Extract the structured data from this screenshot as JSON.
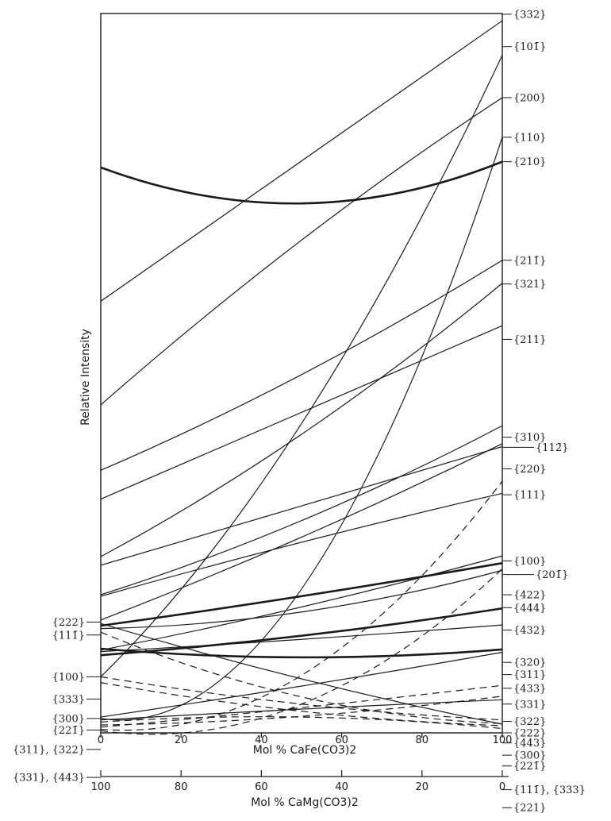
{
  "chart_data": {
    "type": "line",
    "ylabel": "Relative Intensity",
    "xlabel": "Mol % CaFe(CO3)2",
    "xlabel2": "Mol % CaMg(CO3)2",
    "xticks": [
      "0",
      "20",
      "40",
      "60",
      "80",
      "100"
    ],
    "xticks2": [
      "100",
      "80",
      "60",
      "40",
      "20",
      "0"
    ],
    "xlim": [
      0,
      100
    ],
    "ylim": [
      0,
      100
    ],
    "grid": false,
    "series": [
      {
        "name": "{332}",
        "style": "solid",
        "weight": "normal",
        "x": [
          0,
          50,
          100
        ],
        "y": [
          60.0,
          79.5,
          99.0
        ]
      },
      {
        "name": "{101̄}",
        "style": "solid",
        "weight": "normal",
        "x": [
          0,
          50,
          100
        ],
        "y": [
          7.8,
          43.0,
          94.2
        ]
      },
      {
        "name": "{200}",
        "style": "solid",
        "weight": "normal",
        "x": [
          0,
          50,
          100
        ],
        "y": [
          45.6,
          68.5,
          88.3
        ]
      },
      {
        "name": "{110}",
        "style": "solid",
        "weight": "normal",
        "x": [
          0,
          50,
          100
        ],
        "y": [
          2.0,
          20.0,
          82.8
        ]
      },
      {
        "name": "{210}",
        "style": "solid",
        "weight": "bold",
        "x": [
          0,
          50,
          100
        ],
        "y": [
          78.6,
          73.6,
          79.4
        ]
      },
      {
        "name": "{211̄}",
        "style": "solid",
        "weight": "normal",
        "x": [
          0,
          50,
          100
        ],
        "y": [
          36.5,
          49.8,
          65.7
        ]
      },
      {
        "name": "{321}",
        "style": "solid",
        "weight": "normal",
        "x": [
          0,
          50,
          100
        ],
        "y": [
          24.5,
          41.5,
          62.5
        ]
      },
      {
        "name": "{211}",
        "style": "solid",
        "weight": "normal",
        "x": [
          0,
          50,
          100
        ],
        "y": [
          32.5,
          44.6,
          56.6
        ]
      },
      {
        "name": "{310}",
        "style": "solid",
        "weight": "normal",
        "x": [
          0,
          50,
          100
        ],
        "y": [
          19.2,
          29.5,
          42.7
        ]
      },
      {
        "name": "{112̄}",
        "style": "solid",
        "weight": "normal",
        "x": [
          0,
          50,
          100
        ],
        "y": [
          15.7,
          27.2,
          40.2
        ]
      },
      {
        "name": "{220}",
        "style": "solid",
        "weight": "normal",
        "x": [
          0,
          50,
          100
        ],
        "y": [
          23.3,
          31.5,
          39.8
        ]
      },
      {
        "name": "{111}",
        "style": "dashed",
        "weight": "normal",
        "x": [
          0,
          50,
          100
        ],
        "y": [
          0.5,
          8.0,
          35.0
        ]
      },
      {
        "name": "{100}",
        "style": "solid",
        "weight": "normal",
        "x": [
          0,
          50,
          100
        ],
        "y": [
          19.0,
          26.5,
          33.3
        ]
      },
      {
        "name": "{201̄}",
        "style": "solid",
        "weight": "normal",
        "x": [
          0,
          50,
          100
        ],
        "y": [
          11.5,
          17.5,
          24.6
        ]
      },
      {
        "name": "{422}",
        "style": "solid",
        "weight": "bold",
        "x": [
          0,
          50,
          100
        ],
        "y": [
          14.9,
          19.0,
          23.6
        ]
      },
      {
        "name": "{444}",
        "style": "dashed",
        "weight": "normal",
        "x": [
          0,
          50,
          100
        ],
        "y": [
          0.3,
          4.0,
          22.8
        ]
      },
      {
        "name": "{432}",
        "style": "solid",
        "weight": "normal",
        "x": [
          0,
          50,
          100
        ],
        "y": [
          14.5,
          16.8,
          22.6
        ]
      },
      {
        "name": "{320}",
        "style": "solid",
        "weight": "bold",
        "x": [
          0,
          50,
          100
        ],
        "y": [
          10.8,
          13.5,
          17.3
        ]
      },
      {
        "name": "{311}",
        "style": "solid",
        "weight": "normal",
        "x": [
          0,
          50,
          100
        ],
        "y": [
          11.3,
          13.0,
          15.0
        ]
      },
      {
        "name": "{433}",
        "style": "solid",
        "weight": "bold",
        "x": [
          0,
          50,
          100
        ],
        "y": [
          11.7,
          10.5,
          11.6
        ]
      },
      {
        "name": "{331}",
        "style": "solid",
        "weight": "normal",
        "x": [
          0,
          50,
          100
        ],
        "y": [
          2.2,
          6.5,
          11.2
        ]
      },
      {
        "name": "{322}",
        "style": "dashed",
        "weight": "normal",
        "x": [
          0,
          50,
          100
        ],
        "y": [
          0.8,
          3.5,
          6.6
        ]
      },
      {
        "name": "{222}",
        "style": "solid",
        "weight": "normal",
        "x": [
          0,
          50,
          100
        ],
        "y": [
          15.2,
          7.5,
          1.2
        ]
      },
      {
        "name": "{443}",
        "style": "dashed",
        "weight": "normal",
        "x": [
          0,
          50,
          100
        ],
        "y": [
          1.1,
          2.3,
          5.1
        ]
      },
      {
        "name": "{300} {221̄}",
        "style": "solid",
        "weight": "normal",
        "x": [
          0,
          50,
          100
        ],
        "y": [
          1.8,
          3.3,
          4.6
        ]
      },
      {
        "name": "{111̄}",
        "style": "dashed",
        "weight": "normal",
        "x": [
          0,
          50,
          100
        ],
        "y": [
          14.0,
          5.0,
          1.3
        ]
      },
      {
        "name": "{333}",
        "style": "dashed",
        "weight": "normal",
        "x": [
          0,
          50,
          100
        ],
        "y": [
          7.0,
          3.0,
          1.0
        ]
      },
      {
        "name": "{221}",
        "style": "dashed",
        "weight": "normal",
        "x": [
          0,
          50,
          100
        ],
        "y": [
          1.5,
          2.2,
          0.6
        ]
      },
      {
        "name": "{100}",
        "style": "dashed",
        "weight": "normal",
        "x": [
          0,
          50,
          100
        ],
        "y": [
          7.8,
          4.0,
          1.8
        ]
      }
    ],
    "left_labels": [
      {
        "text": "{222}",
        "y": 15.4
      },
      {
        "text": "{111̄}",
        "y": 13.6
      },
      {
        "text": "{100}",
        "y": 7.8
      },
      {
        "text": "{333}",
        "y": 4.7
      },
      {
        "text": "{300}",
        "y": 2.0
      },
      {
        "text": "{221̄}",
        "y": 0.4
      },
      {
        "text": "{311}, {322}",
        "y": -2.3
      },
      {
        "text": "{331}, {443}",
        "y": -6.2
      }
    ],
    "right_labels": [
      {
        "text": "{332}",
        "y": 99.9
      },
      {
        "text": "{101̄}",
        "y": 95.4
      },
      {
        "text": "{200}",
        "y": 88.3
      },
      {
        "text": "{110}",
        "y": 82.8
      },
      {
        "text": "{210}",
        "y": 79.4
      },
      {
        "text": "{211̄}",
        "y": 65.7
      },
      {
        "text": "{321}",
        "y": 62.4
      },
      {
        "text": "{211}",
        "y": 54.7
      },
      {
        "text": "{310}",
        "y": 41.1
      },
      {
        "text": "{112̄}",
        "y": 39.7
      },
      {
        "text": "{220}",
        "y": 36.7
      },
      {
        "text": "{111}",
        "y": 33.1
      },
      {
        "text": "{100}",
        "y": 23.9
      },
      {
        "text": "{201̄}",
        "y": 22.0
      },
      {
        "text": "{422}",
        "y": 19.2
      },
      {
        "text": "{444}",
        "y": 17.4
      },
      {
        "text": "{432}",
        "y": 14.3
      },
      {
        "text": "{320}",
        "y": 9.8
      },
      {
        "text": "{311}",
        "y": 8.1
      },
      {
        "text": "{433}",
        "y": 6.2
      },
      {
        "text": "{331}",
        "y": 4.0
      },
      {
        "text": "{322}",
        "y": 1.6
      },
      {
        "text": "{222}",
        "y": 0.0
      },
      {
        "text": "{443}",
        "y": -1.4
      },
      {
        "text": "{300}",
        "y": -3.1
      },
      {
        "text": "{221̄}",
        "y": -4.6
      },
      {
        "text": "{111̄}, {333}",
        "y": -7.9
      },
      {
        "text": "{221}",
        "y": -10.4
      }
    ]
  }
}
